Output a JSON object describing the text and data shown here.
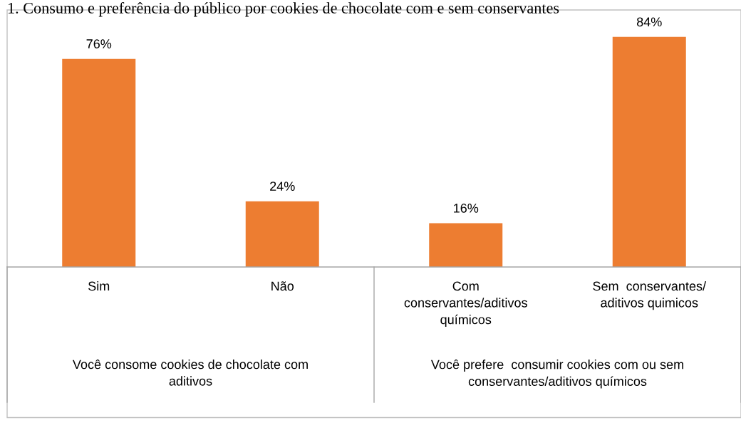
{
  "chart_data": {
    "type": "bar",
    "title": "1. Consumo e preferência do público por cookies de chocolate com e sem conservantes",
    "categories": [
      "Sim",
      "Não",
      "Com\nconservantes/aditivos\nquímicos",
      "Sem  conservantes/\naditivos quimicos"
    ],
    "series": [
      {
        "color": "#ed7d31",
        "values": [
          76,
          24,
          16,
          84
        ],
        "value_labels": [
          "76%",
          "24%",
          "16%",
          "84%"
        ]
      }
    ],
    "annotations": [
      "Você consome cookies de chocolate com\naditivos",
      "Você prefere  consumir cookies com ou sem\nconservantes/aditivos químicos"
    ]
  }
}
